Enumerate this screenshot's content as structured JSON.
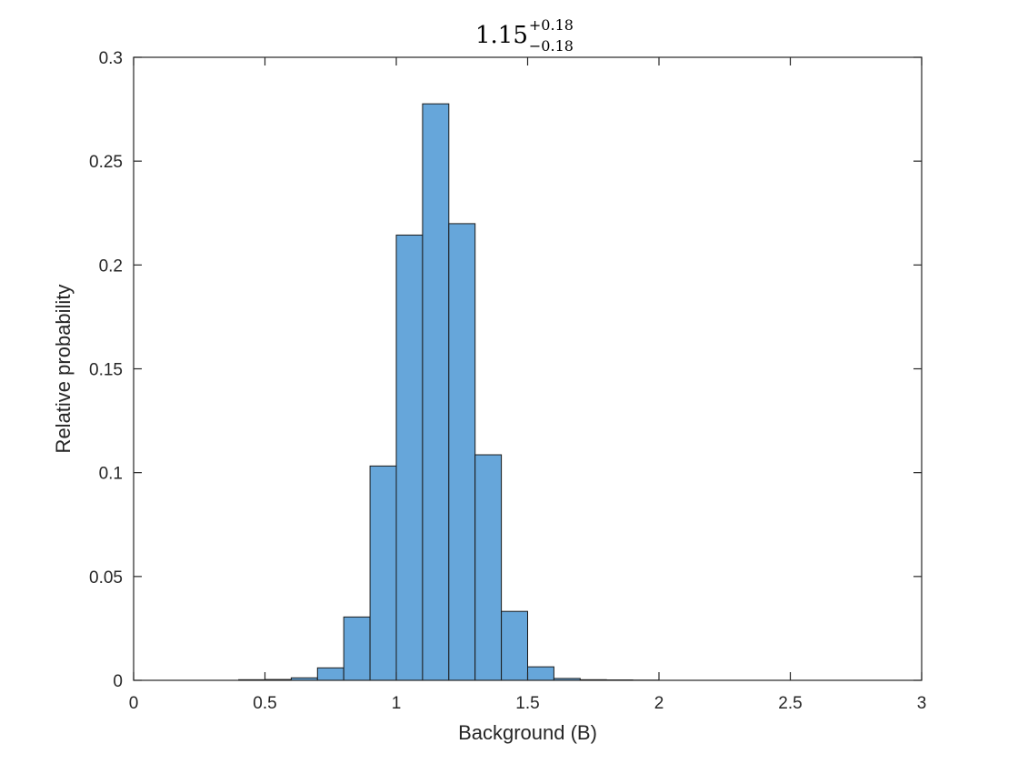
{
  "chart_data": {
    "type": "bar",
    "title": {
      "base": "1.15",
      "superscript": "+0.18",
      "subscript": "−0.18"
    },
    "xlabel": "Background (B)",
    "ylabel": "Relative probability",
    "xlim": [
      0,
      3
    ],
    "ylim": [
      0,
      0.3
    ],
    "xticks": [
      0,
      0.5,
      1,
      1.5,
      2,
      2.5,
      3
    ],
    "xtick_labels": [
      "0",
      "0.5",
      "1",
      "1.5",
      "2",
      "2.5",
      "3"
    ],
    "yticks": [
      0,
      0.05,
      0.1,
      0.15,
      0.2,
      0.25,
      0.3
    ],
    "ytick_labels": [
      "0",
      "0.05",
      "0.1",
      "0.15",
      "0.2",
      "0.25",
      "0.3"
    ],
    "grid": false,
    "bin_edges": [
      0.4,
      0.5,
      0.6,
      0.7,
      0.8,
      0.9,
      1.0,
      1.1,
      1.2,
      1.3,
      1.4,
      1.5,
      1.6,
      1.7,
      1.8,
      1.9,
      2.0
    ],
    "values": [
      0.0003,
      0.0004,
      0.0012,
      0.006,
      0.0305,
      0.1032,
      0.2144,
      0.2776,
      0.2199,
      0.1086,
      0.0332,
      0.0065,
      0.0009,
      0.0003,
      0.0002,
      0.0001
    ],
    "bar_color": "#66a6da",
    "edge_color": "#1a1a1a"
  }
}
